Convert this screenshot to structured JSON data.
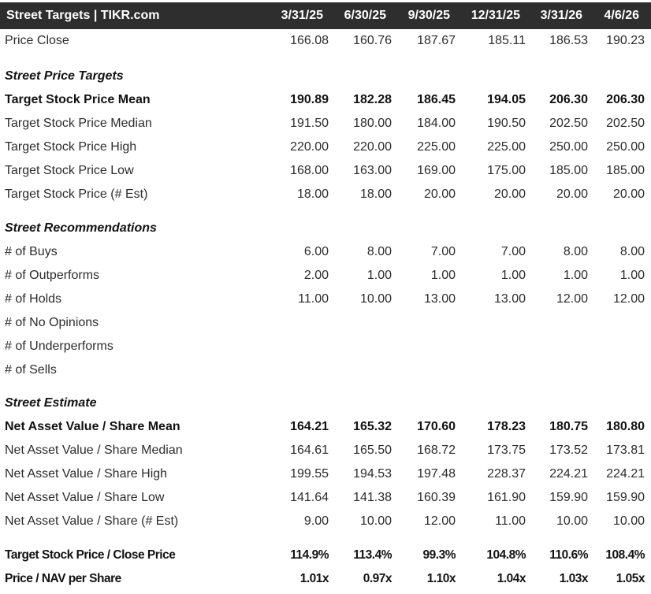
{
  "app": {
    "title": "Street Targets | TIKR.com"
  },
  "colors": {
    "header_bg": "#2e2e2e",
    "header_text": "#ffffff",
    "text_regular": "#2c2c2c",
    "text_bold": "#121212"
  },
  "columns": [
    "3/31/25",
    "6/30/25",
    "9/30/25",
    "12/31/25",
    "3/31/26",
    "4/6/26"
  ],
  "rows": [
    {
      "kind": "data",
      "label": "Price Close",
      "values": [
        "166.08",
        "160.76",
        "187.67",
        "185.11",
        "186.53",
        "190.23"
      ]
    },
    {
      "kind": "gap",
      "h": 15
    },
    {
      "kind": "section",
      "label": "Street Price Targets"
    },
    {
      "kind": "data",
      "bold": true,
      "label": "Target Stock Price Mean",
      "values": [
        "190.89",
        "182.28",
        "186.45",
        "194.05",
        "206.30",
        "206.30"
      ]
    },
    {
      "kind": "data",
      "label": "Target Stock Price Median",
      "values": [
        "191.50",
        "180.00",
        "184.00",
        "190.50",
        "202.50",
        "202.50"
      ]
    },
    {
      "kind": "data",
      "label": "Target Stock Price High",
      "values": [
        "220.00",
        "220.00",
        "225.00",
        "225.00",
        "250.00",
        "250.00"
      ]
    },
    {
      "kind": "data",
      "label": "Target Stock Price Low",
      "values": [
        "168.00",
        "163.00",
        "169.00",
        "175.00",
        "185.00",
        "185.00"
      ]
    },
    {
      "kind": "data",
      "label": "Target Stock Price (# Est)",
      "values": [
        "18.00",
        "18.00",
        "20.00",
        "20.00",
        "20.00",
        "20.00"
      ]
    },
    {
      "kind": "gap",
      "h": 13
    },
    {
      "kind": "section",
      "label": "Street Recommendations"
    },
    {
      "kind": "data",
      "label": "# of Buys",
      "values": [
        "6.00",
        "8.00",
        "7.00",
        "7.00",
        "8.00",
        "8.00"
      ]
    },
    {
      "kind": "data",
      "label": "# of Outperforms",
      "values": [
        "2.00",
        "1.00",
        "1.00",
        "1.00",
        "1.00",
        "1.00"
      ]
    },
    {
      "kind": "data",
      "label": "# of Holds",
      "values": [
        "11.00",
        "10.00",
        "13.00",
        "13.00",
        "12.00",
        "12.00"
      ]
    },
    {
      "kind": "data",
      "label": "# of No Opinions",
      "values": [
        "",
        "",
        "",
        "",
        "",
        ""
      ]
    },
    {
      "kind": "data",
      "label": "# of Underperforms",
      "values": [
        "",
        "",
        "",
        "",
        "",
        ""
      ]
    },
    {
      "kind": "data",
      "label": "# of Sells",
      "values": [
        "",
        "",
        "",
        "",
        "",
        ""
      ]
    },
    {
      "kind": "gap",
      "h": 12
    },
    {
      "kind": "section",
      "label": "Street Estimate"
    },
    {
      "kind": "data",
      "bold": true,
      "label": "Net Asset Value / Share Mean",
      "values": [
        "164.21",
        "165.32",
        "170.60",
        "178.23",
        "180.75",
        "180.80"
      ]
    },
    {
      "kind": "data",
      "label": "Net Asset Value / Share Median",
      "values": [
        "164.61",
        "165.50",
        "168.72",
        "173.75",
        "173.52",
        "173.81"
      ]
    },
    {
      "kind": "data",
      "label": "Net Asset Value / Share High",
      "values": [
        "199.55",
        "194.53",
        "197.48",
        "228.37",
        "224.21",
        "224.21"
      ]
    },
    {
      "kind": "data",
      "label": "Net Asset Value / Share Low",
      "values": [
        "141.64",
        "141.38",
        "160.39",
        "161.90",
        "159.90",
        "159.90"
      ]
    },
    {
      "kind": "data",
      "label": "Net Asset Value / Share (# Est)",
      "values": [
        "9.00",
        "10.00",
        "12.00",
        "11.00",
        "10.00",
        "10.00"
      ]
    },
    {
      "kind": "gap",
      "h": 13
    },
    {
      "kind": "data",
      "condensed": true,
      "label": "Target Stock Price / Close Price",
      "values": [
        "114.9%",
        "113.4%",
        "99.3%",
        "104.8%",
        "110.6%",
        "108.4%"
      ]
    },
    {
      "kind": "data",
      "condensed": true,
      "label": "Price / NAV per Share",
      "values": [
        "1.01x",
        "0.97x",
        "1.10x",
        "1.04x",
        "1.03x",
        "1.05x"
      ]
    }
  ]
}
